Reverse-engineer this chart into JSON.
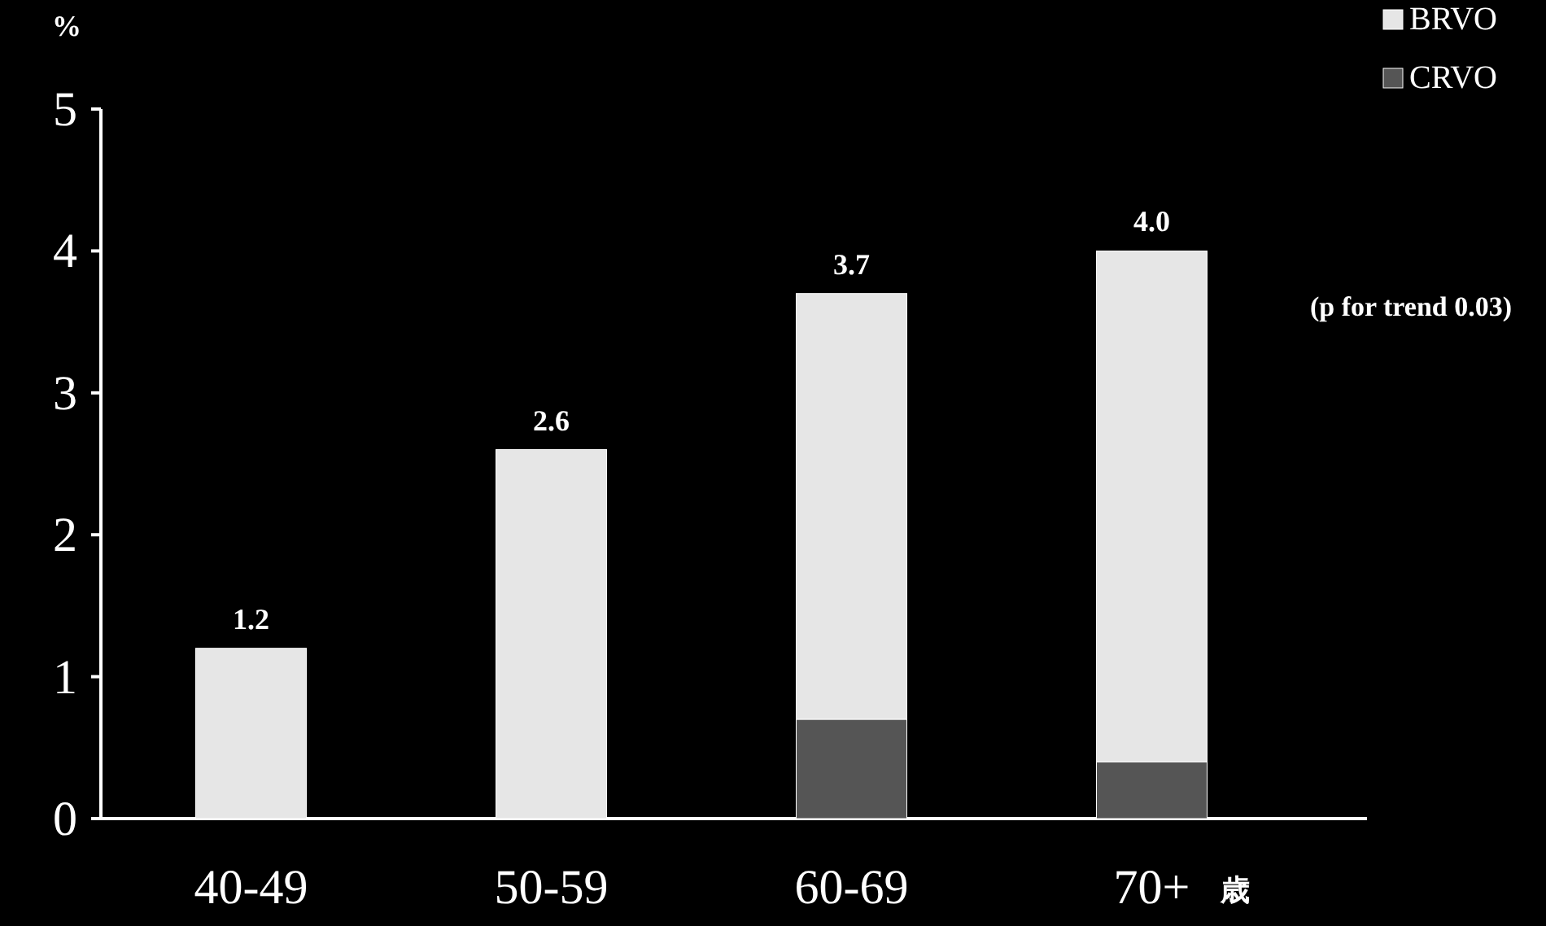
{
  "chart_data": {
    "type": "bar",
    "stacked": true,
    "ylabel": "%",
    "xlabel": "歳",
    "categories": [
      "40-49",
      "50-59",
      "60-69",
      "70+"
    ],
    "series": [
      {
        "name": "CRVO",
        "color": "#555555",
        "values": [
          0,
          0,
          0.7,
          0.4
        ]
      },
      {
        "name": "BRVO",
        "color": "#e6e6e6",
        "values": [
          1.2,
          2.6,
          3.0,
          3.6
        ]
      }
    ],
    "totals": [
      "1.2",
      "2.6",
      "3.7",
      "4.0"
    ],
    "ylim": [
      0,
      5
    ],
    "yticks": [
      0,
      1,
      2,
      3,
      4,
      5
    ],
    "annotations": [
      "(p for trend  0.03)"
    ],
    "legend": "top right"
  }
}
